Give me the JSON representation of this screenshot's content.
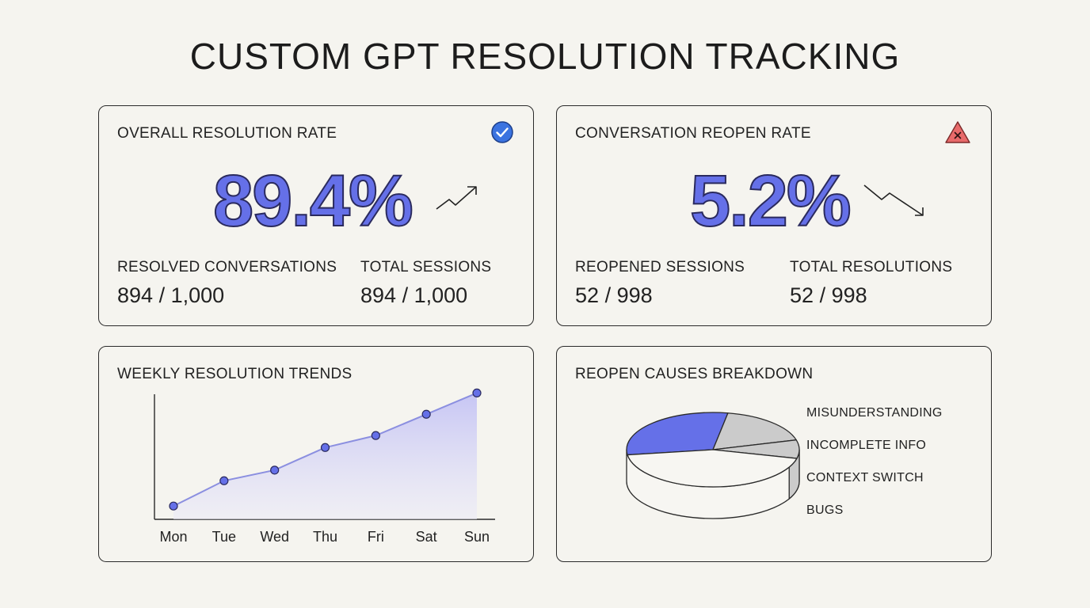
{
  "page": {
    "title": "CUSTOM GPT RESOLUTION TRACKING"
  },
  "resolution_card": {
    "title": "OVERALL RESOLUTION RATE",
    "value": "89.4%",
    "status_icon": "check-circle-icon",
    "trend_icon": "trend-up-icon",
    "stats": [
      {
        "label": "RESOLVED CONVERSATIONS",
        "numerator": "894",
        "denominator": "/ 1,000"
      },
      {
        "label": "TOTAL SESSIONS",
        "numerator": "894",
        "denominator": "/ 1,000"
      }
    ]
  },
  "reopen_card": {
    "title": "CONVERSATION REOPEN RATE",
    "value": "5.2%",
    "status_icon": "warning-triangle-icon",
    "trend_icon": "trend-down-icon",
    "stats": [
      {
        "label": "REOPENED SESSIONS",
        "numerator": "52",
        "denominator": "/ 998"
      },
      {
        "label": "TOTAL RESOLUTIONS",
        "numerator": "52",
        "denominator": "/ 998"
      }
    ]
  },
  "trends_card": {
    "title": "WEEKLY RESOLUTION TRENDS"
  },
  "causes_card": {
    "title": "REOPEN CAUSES BREAKDOWN"
  },
  "colors": {
    "accent": "#6570e8",
    "check": "#3b73e0",
    "warning": "#e86a6a",
    "line": "#8b8fe0",
    "area_top": "#c9c9f5",
    "pie_gray": "#cbcbcb"
  },
  "chart_data": [
    {
      "type": "area",
      "title": "WEEKLY RESOLUTION TRENDS",
      "categories": [
        "Mon",
        "Tue",
        "Wed",
        "Thu",
        "Fri",
        "Sat",
        "Sun"
      ],
      "values": [
        10,
        29,
        37,
        54,
        63,
        79,
        95
      ],
      "ylim": [
        0,
        100
      ],
      "grid": false,
      "markers": true
    },
    {
      "type": "pie",
      "title": "REOPEN CAUSES BREAKDOWN",
      "labels": [
        "MISUNDERSTANDING",
        "INCOMPLETE INFO",
        "CONTEXT SWITCH",
        "BUGS"
      ],
      "values": [
        30,
        18,
        8,
        44
      ],
      "colors": [
        "#6570e8",
        "#cbcbcb",
        "#cbcbcb",
        "#f7f6f2"
      ],
      "style": "3d",
      "legend": "right"
    }
  ]
}
